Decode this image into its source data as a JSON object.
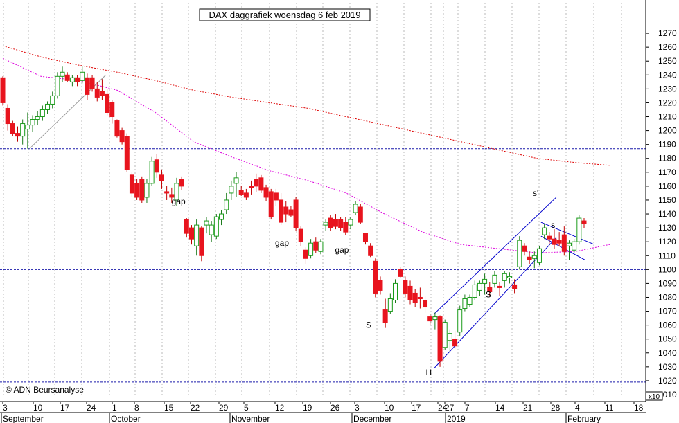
{
  "chart_data": {
    "type": "candlestick",
    "title": "DAX daggrafiek woensdag 6 feb 2019",
    "copyright": "© ADN Beursanalyse",
    "y_axis": {
      "ylim": [
        1010,
        1280
      ],
      "unit_marker": "x10",
      "ticks": [
        1010,
        1020,
        1030,
        1040,
        1050,
        1060,
        1070,
        1080,
        1090,
        1100,
        1110,
        1120,
        1130,
        1140,
        1150,
        1160,
        1170,
        1180,
        1190,
        1200,
        1210,
        1220,
        1230,
        1240,
        1250,
        1260,
        1270
      ]
    },
    "x_axis": {
      "day_labels": [
        "3",
        "10",
        "17",
        "24",
        "1",
        "8",
        "15",
        "22",
        "29",
        "5",
        "12",
        "19",
        "26",
        "3",
        "10",
        "17",
        "24",
        "27",
        "7",
        "14",
        "21",
        "28",
        "4",
        "11",
        "18"
      ],
      "month_labels": [
        "September",
        "October",
        "November",
        "December",
        "2019",
        "February"
      ]
    },
    "grid": "vertical dashed lines at weekly ticks",
    "horizontal_levels": [
      1187,
      1100,
      1019
    ],
    "candles": [
      {
        "o": 1238,
        "h": 1239,
        "l": 1218,
        "c": 1220
      },
      {
        "o": 1216,
        "h": 1219,
        "l": 1200,
        "c": 1205
      },
      {
        "o": 1205,
        "h": 1207,
        "l": 1196,
        "c": 1198
      },
      {
        "o": 1198,
        "h": 1203,
        "l": 1192,
        "c": 1196
      },
      {
        "o": 1196,
        "h": 1208,
        "l": 1190,
        "c": 1205
      },
      {
        "o": 1201,
        "h": 1213,
        "l": 1187,
        "c": 1204
      },
      {
        "o": 1204,
        "h": 1211,
        "l": 1199,
        "c": 1208
      },
      {
        "o": 1208,
        "h": 1214,
        "l": 1204,
        "c": 1210
      },
      {
        "o": 1210,
        "h": 1218,
        "l": 1207,
        "c": 1215
      },
      {
        "o": 1215,
        "h": 1221,
        "l": 1212,
        "c": 1219
      },
      {
        "o": 1219,
        "h": 1228,
        "l": 1216,
        "c": 1225
      },
      {
        "o": 1225,
        "h": 1242,
        "l": 1223,
        "c": 1239
      },
      {
        "o": 1239,
        "h": 1246,
        "l": 1235,
        "c": 1242
      },
      {
        "o": 1240,
        "h": 1242,
        "l": 1235,
        "c": 1236
      },
      {
        "o": 1235,
        "h": 1240,
        "l": 1232,
        "c": 1238
      },
      {
        "o": 1238,
        "h": 1240,
        "l": 1232,
        "c": 1235
      },
      {
        "o": 1236,
        "h": 1246,
        "l": 1234,
        "c": 1242
      },
      {
        "o": 1238,
        "h": 1241,
        "l": 1222,
        "c": 1226
      },
      {
        "o": 1238,
        "h": 1240,
        "l": 1228,
        "c": 1230
      },
      {
        "o": 1230,
        "h": 1235,
        "l": 1221,
        "c": 1224
      },
      {
        "o": 1228,
        "h": 1237,
        "l": 1222,
        "c": 1225
      },
      {
        "o": 1226,
        "h": 1230,
        "l": 1211,
        "c": 1213
      },
      {
        "o": 1220,
        "h": 1222,
        "l": 1205,
        "c": 1210
      },
      {
        "o": 1207,
        "h": 1208,
        "l": 1195,
        "c": 1196
      },
      {
        "o": 1200,
        "h": 1202,
        "l": 1190,
        "c": 1192
      },
      {
        "o": 1196,
        "h": 1198,
        "l": 1170,
        "c": 1172
      },
      {
        "o": 1168,
        "h": 1170,
        "l": 1152,
        "c": 1155
      },
      {
        "o": 1162,
        "h": 1165,
        "l": 1150,
        "c": 1152
      },
      {
        "o": 1165,
        "h": 1167,
        "l": 1148,
        "c": 1150
      },
      {
        "o": 1152,
        "h": 1165,
        "l": 1148,
        "c": 1162
      },
      {
        "o": 1162,
        "h": 1181,
        "l": 1160,
        "c": 1178
      },
      {
        "o": 1179,
        "h": 1183,
        "l": 1166,
        "c": 1170
      },
      {
        "o": 1168,
        "h": 1172,
        "l": 1158,
        "c": 1164
      },
      {
        "o": 1156,
        "h": 1160,
        "l": 1150,
        "c": 1155
      },
      {
        "o": 1154,
        "h": 1159,
        "l": 1148,
        "c": 1152
      },
      {
        "o": 1150,
        "h": 1166,
        "l": 1146,
        "c": 1162
      },
      {
        "o": 1165,
        "h": 1167,
        "l": 1157,
        "c": 1160
      },
      {
        "o": 1136,
        "h": 1137,
        "l": 1123,
        "c": 1126
      },
      {
        "o": 1130,
        "h": 1132,
        "l": 1118,
        "c": 1122
      },
      {
        "o": 1117,
        "h": 1136,
        "l": 1110,
        "c": 1132
      },
      {
        "o": 1130,
        "h": 1131,
        "l": 1106,
        "c": 1110
      },
      {
        "o": 1132,
        "h": 1138,
        "l": 1126,
        "c": 1135
      },
      {
        "o": 1125,
        "h": 1135,
        "l": 1120,
        "c": 1132
      },
      {
        "o": 1124,
        "h": 1140,
        "l": 1122,
        "c": 1138
      },
      {
        "o": 1136,
        "h": 1143,
        "l": 1132,
        "c": 1140
      },
      {
        "o": 1143,
        "h": 1155,
        "l": 1140,
        "c": 1150
      },
      {
        "o": 1155,
        "h": 1164,
        "l": 1150,
        "c": 1160
      },
      {
        "o": 1162,
        "h": 1170,
        "l": 1152,
        "c": 1166
      },
      {
        "o": 1157,
        "h": 1160,
        "l": 1153,
        "c": 1154
      },
      {
        "o": 1155,
        "h": 1158,
        "l": 1150,
        "c": 1152
      },
      {
        "o": 1160,
        "h": 1164,
        "l": 1154,
        "c": 1159
      },
      {
        "o": 1165,
        "h": 1169,
        "l": 1156,
        "c": 1160
      },
      {
        "o": 1166,
        "h": 1168,
        "l": 1155,
        "c": 1157
      },
      {
        "o": 1159,
        "h": 1161,
        "l": 1149,
        "c": 1152
      },
      {
        "o": 1156,
        "h": 1158,
        "l": 1136,
        "c": 1138
      },
      {
        "o": 1155,
        "h": 1158,
        "l": 1146,
        "c": 1150
      },
      {
        "o": 1150,
        "h": 1155,
        "l": 1132,
        "c": 1134
      },
      {
        "o": 1145,
        "h": 1149,
        "l": 1134,
        "c": 1140
      },
      {
        "o": 1143,
        "h": 1146,
        "l": 1138,
        "c": 1139
      },
      {
        "o": 1150,
        "h": 1152,
        "l": 1128,
        "c": 1130
      },
      {
        "o": 1129,
        "h": 1131,
        "l": 1117,
        "c": 1120
      },
      {
        "o": 1114,
        "h": 1116,
        "l": 1104,
        "c": 1108
      },
      {
        "o": 1110,
        "h": 1122,
        "l": 1108,
        "c": 1119
      },
      {
        "o": 1120,
        "h": 1123,
        "l": 1112,
        "c": 1114
      },
      {
        "o": 1113,
        "h": 1122,
        "l": 1111,
        "c": 1120
      },
      {
        "o": 1132,
        "h": 1136,
        "l": 1128,
        "c": 1134
      },
      {
        "o": 1137,
        "h": 1139,
        "l": 1128,
        "c": 1130
      },
      {
        "o": 1136,
        "h": 1140,
        "l": 1129,
        "c": 1131
      },
      {
        "o": 1136,
        "h": 1138,
        "l": 1128,
        "c": 1130
      },
      {
        "o": 1134,
        "h": 1138,
        "l": 1125,
        "c": 1127
      },
      {
        "o": 1132,
        "h": 1138,
        "l": 1129,
        "c": 1136
      },
      {
        "o": 1141,
        "h": 1149,
        "l": 1139,
        "c": 1147
      },
      {
        "o": 1145,
        "h": 1147,
        "l": 1133,
        "c": 1134
      },
      {
        "o": 1126,
        "h": 1126,
        "l": 1118,
        "c": 1120
      },
      {
        "o": 1117,
        "h": 1119,
        "l": 1109,
        "c": 1110
      },
      {
        "o": 1106,
        "h": 1108,
        "l": 1080,
        "c": 1083
      },
      {
        "o": 1092,
        "h": 1095,
        "l": 1082,
        "c": 1085
      },
      {
        "o": 1071,
        "h": 1079,
        "l": 1058,
        "c": 1062
      },
      {
        "o": 1070,
        "h": 1083,
        "l": 1068,
        "c": 1079
      },
      {
        "o": 1078,
        "h": 1093,
        "l": 1076,
        "c": 1090
      },
      {
        "o": 1100,
        "h": 1102,
        "l": 1094,
        "c": 1095
      },
      {
        "o": 1092,
        "h": 1095,
        "l": 1080,
        "c": 1083
      },
      {
        "o": 1088,
        "h": 1092,
        "l": 1075,
        "c": 1078
      },
      {
        "o": 1083,
        "h": 1086,
        "l": 1073,
        "c": 1076
      },
      {
        "o": 1080,
        "h": 1087,
        "l": 1072,
        "c": 1079
      },
      {
        "o": 1078,
        "h": 1081,
        "l": 1069,
        "c": 1073
      },
      {
        "o": 1066,
        "h": 1068,
        "l": 1060,
        "c": 1063
      },
      {
        "o": 1064,
        "h": 1069,
        "l": 1057,
        "c": 1066
      },
      {
        "o": 1066,
        "h": 1067,
        "l": 1030,
        "c": 1034
      },
      {
        "o": 1044,
        "h": 1064,
        "l": 1042,
        "c": 1062
      },
      {
        "o": 1049,
        "h": 1057,
        "l": 1040,
        "c": 1054
      },
      {
        "o": 1050,
        "h": 1056,
        "l": 1043,
        "c": 1045
      },
      {
        "o": 1055,
        "h": 1074,
        "l": 1052,
        "c": 1071
      },
      {
        "o": 1072,
        "h": 1082,
        "l": 1070,
        "c": 1079
      },
      {
        "o": 1075,
        "h": 1082,
        "l": 1073,
        "c": 1080
      },
      {
        "o": 1080,
        "h": 1092,
        "l": 1078,
        "c": 1089
      },
      {
        "o": 1085,
        "h": 1092,
        "l": 1081,
        "c": 1090
      },
      {
        "o": 1090,
        "h": 1097,
        "l": 1082,
        "c": 1093
      },
      {
        "o": 1087,
        "h": 1091,
        "l": 1081,
        "c": 1084
      },
      {
        "o": 1090,
        "h": 1099,
        "l": 1087,
        "c": 1096
      },
      {
        "o": 1088,
        "h": 1091,
        "l": 1081,
        "c": 1087
      },
      {
        "o": 1092,
        "h": 1099,
        "l": 1087,
        "c": 1097
      },
      {
        "o": 1094,
        "h": 1098,
        "l": 1090,
        "c": 1095
      },
      {
        "o": 1089,
        "h": 1093,
        "l": 1083,
        "c": 1086
      },
      {
        "o": 1102,
        "h": 1124,
        "l": 1100,
        "c": 1121
      },
      {
        "o": 1117,
        "h": 1119,
        "l": 1110,
        "c": 1113
      },
      {
        "o": 1109,
        "h": 1113,
        "l": 1104,
        "c": 1107
      },
      {
        "o": 1108,
        "h": 1113,
        "l": 1101,
        "c": 1110
      },
      {
        "o": 1105,
        "h": 1117,
        "l": 1103,
        "c": 1115
      },
      {
        "o": 1125,
        "h": 1133,
        "l": 1122,
        "c": 1130
      },
      {
        "o": 1124,
        "h": 1127,
        "l": 1118,
        "c": 1122
      },
      {
        "o": 1122,
        "h": 1129,
        "l": 1115,
        "c": 1118
      },
      {
        "o": 1121,
        "h": 1127,
        "l": 1117,
        "c": 1119
      },
      {
        "o": 1125,
        "h": 1131,
        "l": 1110,
        "c": 1113
      },
      {
        "o": 1117,
        "h": 1121,
        "l": 1107,
        "c": 1119
      },
      {
        "o": 1114,
        "h": 1122,
        "l": 1112,
        "c": 1120
      },
      {
        "o": 1120,
        "h": 1139,
        "l": 1118,
        "c": 1137
      },
      {
        "o": 1135,
        "h": 1137,
        "l": 1130,
        "c": 1133
      }
    ],
    "moving_averages": [
      {
        "color": "#dd0000",
        "points": [
          [
            0,
            1261
          ],
          [
            20,
            1253
          ],
          [
            40,
            1247
          ],
          [
            60,
            1242
          ],
          [
            80,
            1236
          ],
          [
            100,
            1229
          ],
          [
            120,
            1224
          ],
          [
            140,
            1220
          ],
          [
            160,
            1216
          ],
          [
            180,
            1210
          ],
          [
            200,
            1204
          ],
          [
            220,
            1198
          ],
          [
            240,
            1192
          ],
          [
            260,
            1186
          ],
          [
            280,
            1180
          ],
          [
            300,
            1177
          ],
          [
            318,
            1175
          ]
        ]
      },
      {
        "color": "#dd00dd",
        "points": [
          [
            0,
            1252
          ],
          [
            20,
            1239
          ],
          [
            40,
            1236
          ],
          [
            60,
            1229
          ],
          [
            80,
            1213
          ],
          [
            100,
            1192
          ],
          [
            120,
            1181
          ],
          [
            140,
            1171
          ],
          [
            160,
            1164
          ],
          [
            180,
            1155
          ],
          [
            200,
            1140
          ],
          [
            220,
            1127
          ],
          [
            240,
            1118
          ],
          [
            260,
            1115
          ],
          [
            280,
            1112
          ],
          [
            300,
            1113
          ],
          [
            318,
            1118
          ]
        ]
      }
    ],
    "trendlines": [
      {
        "color": "#0000cc",
        "from": [
          226,
          1068
        ],
        "to": [
          290,
          1152
        ]
      },
      {
        "color": "#0000cc",
        "from": [
          226,
          1029
        ],
        "to": [
          290,
          1123
        ]
      },
      {
        "color": "#0000cc",
        "from": [
          282,
          1134
        ],
        "to": [
          310,
          1118
        ]
      },
      {
        "color": "#0000cc",
        "from": [
          282,
          1124
        ],
        "to": [
          305,
          1107
        ]
      },
      {
        "color": "#999999",
        "from": [
          14,
          1187
        ],
        "to": [
          54,
          1240
        ]
      }
    ],
    "annotations": [
      {
        "text": "gap",
        "x": 93,
        "y": 1147,
        "color": "#999999"
      },
      {
        "text": "gap",
        "x": 150,
        "y": 1117,
        "color": "#999999"
      },
      {
        "text": "gap",
        "x": 183,
        "y": 1112,
        "color": "#000000"
      },
      {
        "text": "S",
        "x": 200,
        "y": 1058,
        "color": "#0000cc"
      },
      {
        "text": "H",
        "x": 233,
        "y": 1024,
        "color": "#0000cc"
      },
      {
        "text": "S",
        "x": 266,
        "y": 1080,
        "color": "#0000cc"
      },
      {
        "text": "s'",
        "x": 292,
        "y": 1153,
        "color": "#0000cc"
      },
      {
        "text": "s",
        "x": 302,
        "y": 1130,
        "color": "#0000cc"
      }
    ]
  }
}
